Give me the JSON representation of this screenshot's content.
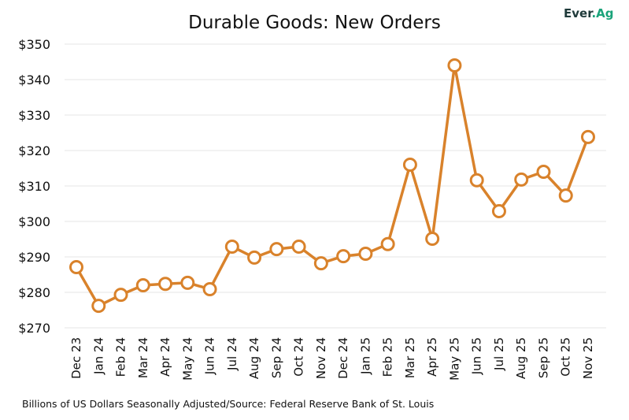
{
  "logo": {
    "text_main": "Ever",
    "text_accent": ".Ag"
  },
  "chart_data": {
    "type": "line",
    "title": "Durable Goods: New Orders",
    "note": "Billions of US Dollars Seasonally Adjusted/Source: Federal Reserve Bank of St. Louis",
    "categories": [
      "Dec 23",
      "Jan 24",
      "Feb 24",
      "Mar 24",
      "Apr 24",
      "May 24",
      "Jun 24",
      "Jul 24",
      "Aug 24",
      "Sep 24",
      "Oct 24",
      "Nov 24",
      "Dec 24",
      "Jan 25",
      "Feb 25",
      "Mar 25",
      "Apr 25",
      "May 25",
      "Jun 25",
      "Jul 25",
      "Aug 25",
      "Sep 25",
      "Oct 25",
      "Nov 25"
    ],
    "values": [
      287.1,
      276.2,
      279.3,
      282.0,
      282.4,
      282.7,
      280.9,
      292.9,
      289.8,
      292.2,
      292.9,
      288.2,
      290.2,
      290.9,
      293.6,
      316.0,
      295.1,
      344.0,
      311.6,
      302.9,
      311.8,
      314.0,
      307.3,
      323.8
    ],
    "ylim": [
      270,
      350
    ],
    "yticks": [
      "$270",
      "$280",
      "$290",
      "$300",
      "$310",
      "$320",
      "$330",
      "$340",
      "$350"
    ],
    "grid": true,
    "line_color": "#d9822b"
  }
}
